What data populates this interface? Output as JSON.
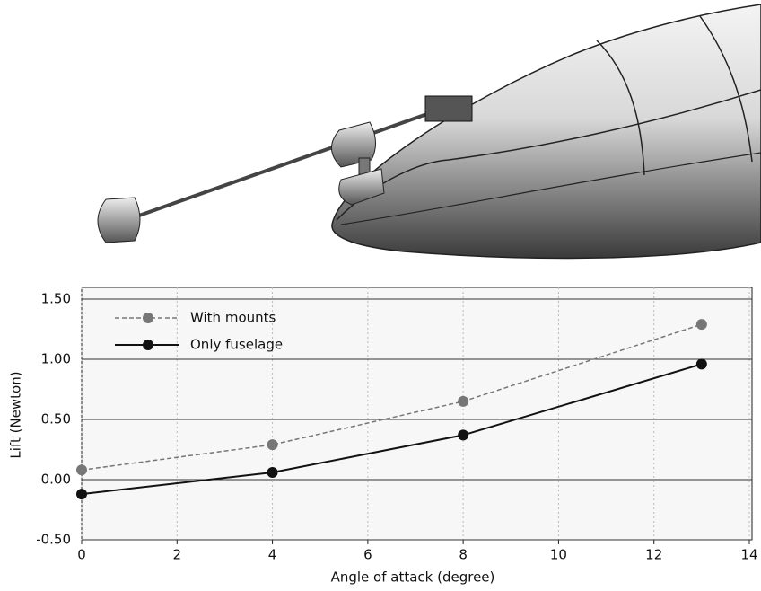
{
  "chart_data": {
    "type": "line",
    "x_label": "Angle of attack (degree)",
    "y_label": "Lift (Newton)",
    "x": [
      0,
      4,
      8,
      13
    ],
    "series": [
      {
        "name": "With mounts",
        "color": "#777777",
        "dashed": true,
        "values": [
          0.08,
          0.29,
          0.65,
          1.29
        ]
      },
      {
        "name": "Only fuselage",
        "color": "#111111",
        "dashed": false,
        "values": [
          -0.12,
          0.06,
          0.37,
          0.96
        ]
      }
    ],
    "xlim": [
      0,
      14
    ],
    "xticks": [
      0,
      2,
      4,
      6,
      8,
      10,
      12,
      14
    ],
    "ylim": [
      -0.5,
      1.5
    ],
    "yticks": [
      {
        "value": -0.5,
        "label": "-0.50"
      },
      {
        "value": 0,
        "label": "0.00"
      },
      {
        "value": 0.5,
        "label": "0.50"
      },
      {
        "value": 1,
        "label": "1.00"
      },
      {
        "value": 1.5,
        "label": "1.50"
      }
    ],
    "grid": true,
    "legend": "upper left"
  }
}
